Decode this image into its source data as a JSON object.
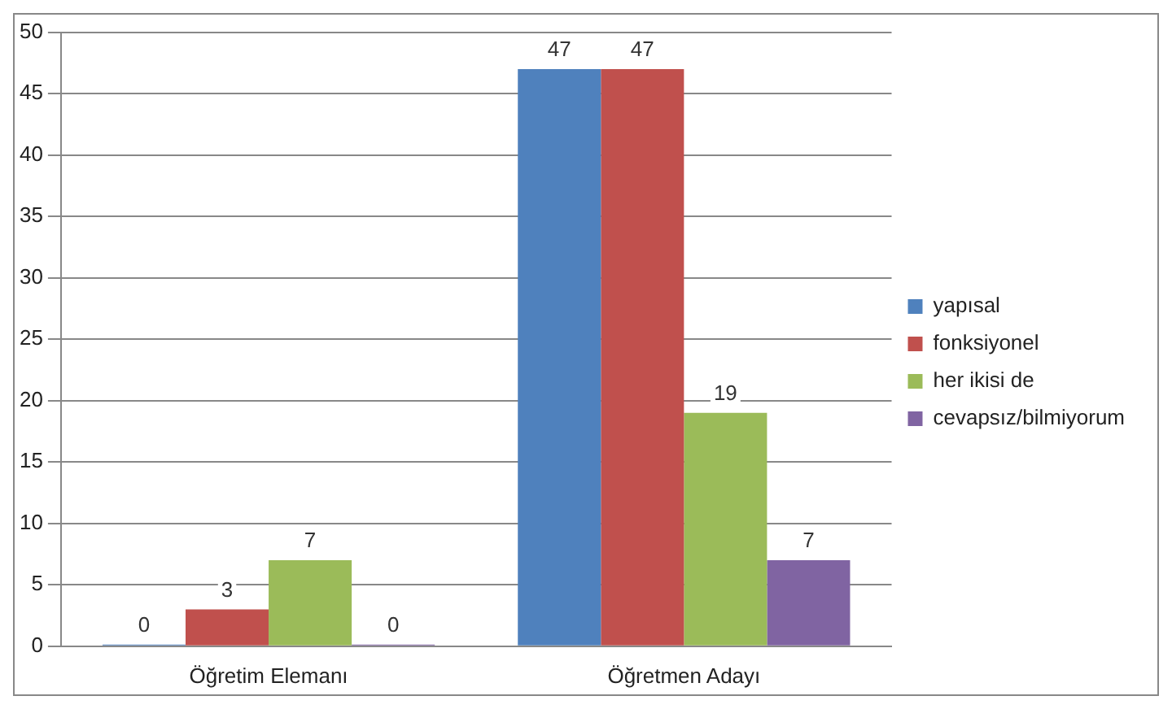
{
  "chart_data": {
    "type": "bar",
    "categories": [
      "Öğretim Elemanı",
      "Öğretmen Adayı"
    ],
    "series": [
      {
        "name": "yapısal",
        "color": "#4f81bd",
        "values": [
          0,
          47
        ]
      },
      {
        "name": "fonksiyonel",
        "color": "#c0504d",
        "values": [
          3,
          47
        ]
      },
      {
        "name": "her ikisi de",
        "color": "#9bbb59",
        "values": [
          7,
          19
        ]
      },
      {
        "name": "cevapsız/bilmiyorum",
        "color": "#8064a2",
        "values": [
          0,
          7
        ]
      }
    ],
    "ylim": [
      0,
      50
    ],
    "yticks": [
      0,
      5,
      10,
      15,
      20,
      25,
      30,
      35,
      40,
      45,
      50
    ],
    "grid": "y",
    "legend": "right",
    "data_labels": true
  }
}
